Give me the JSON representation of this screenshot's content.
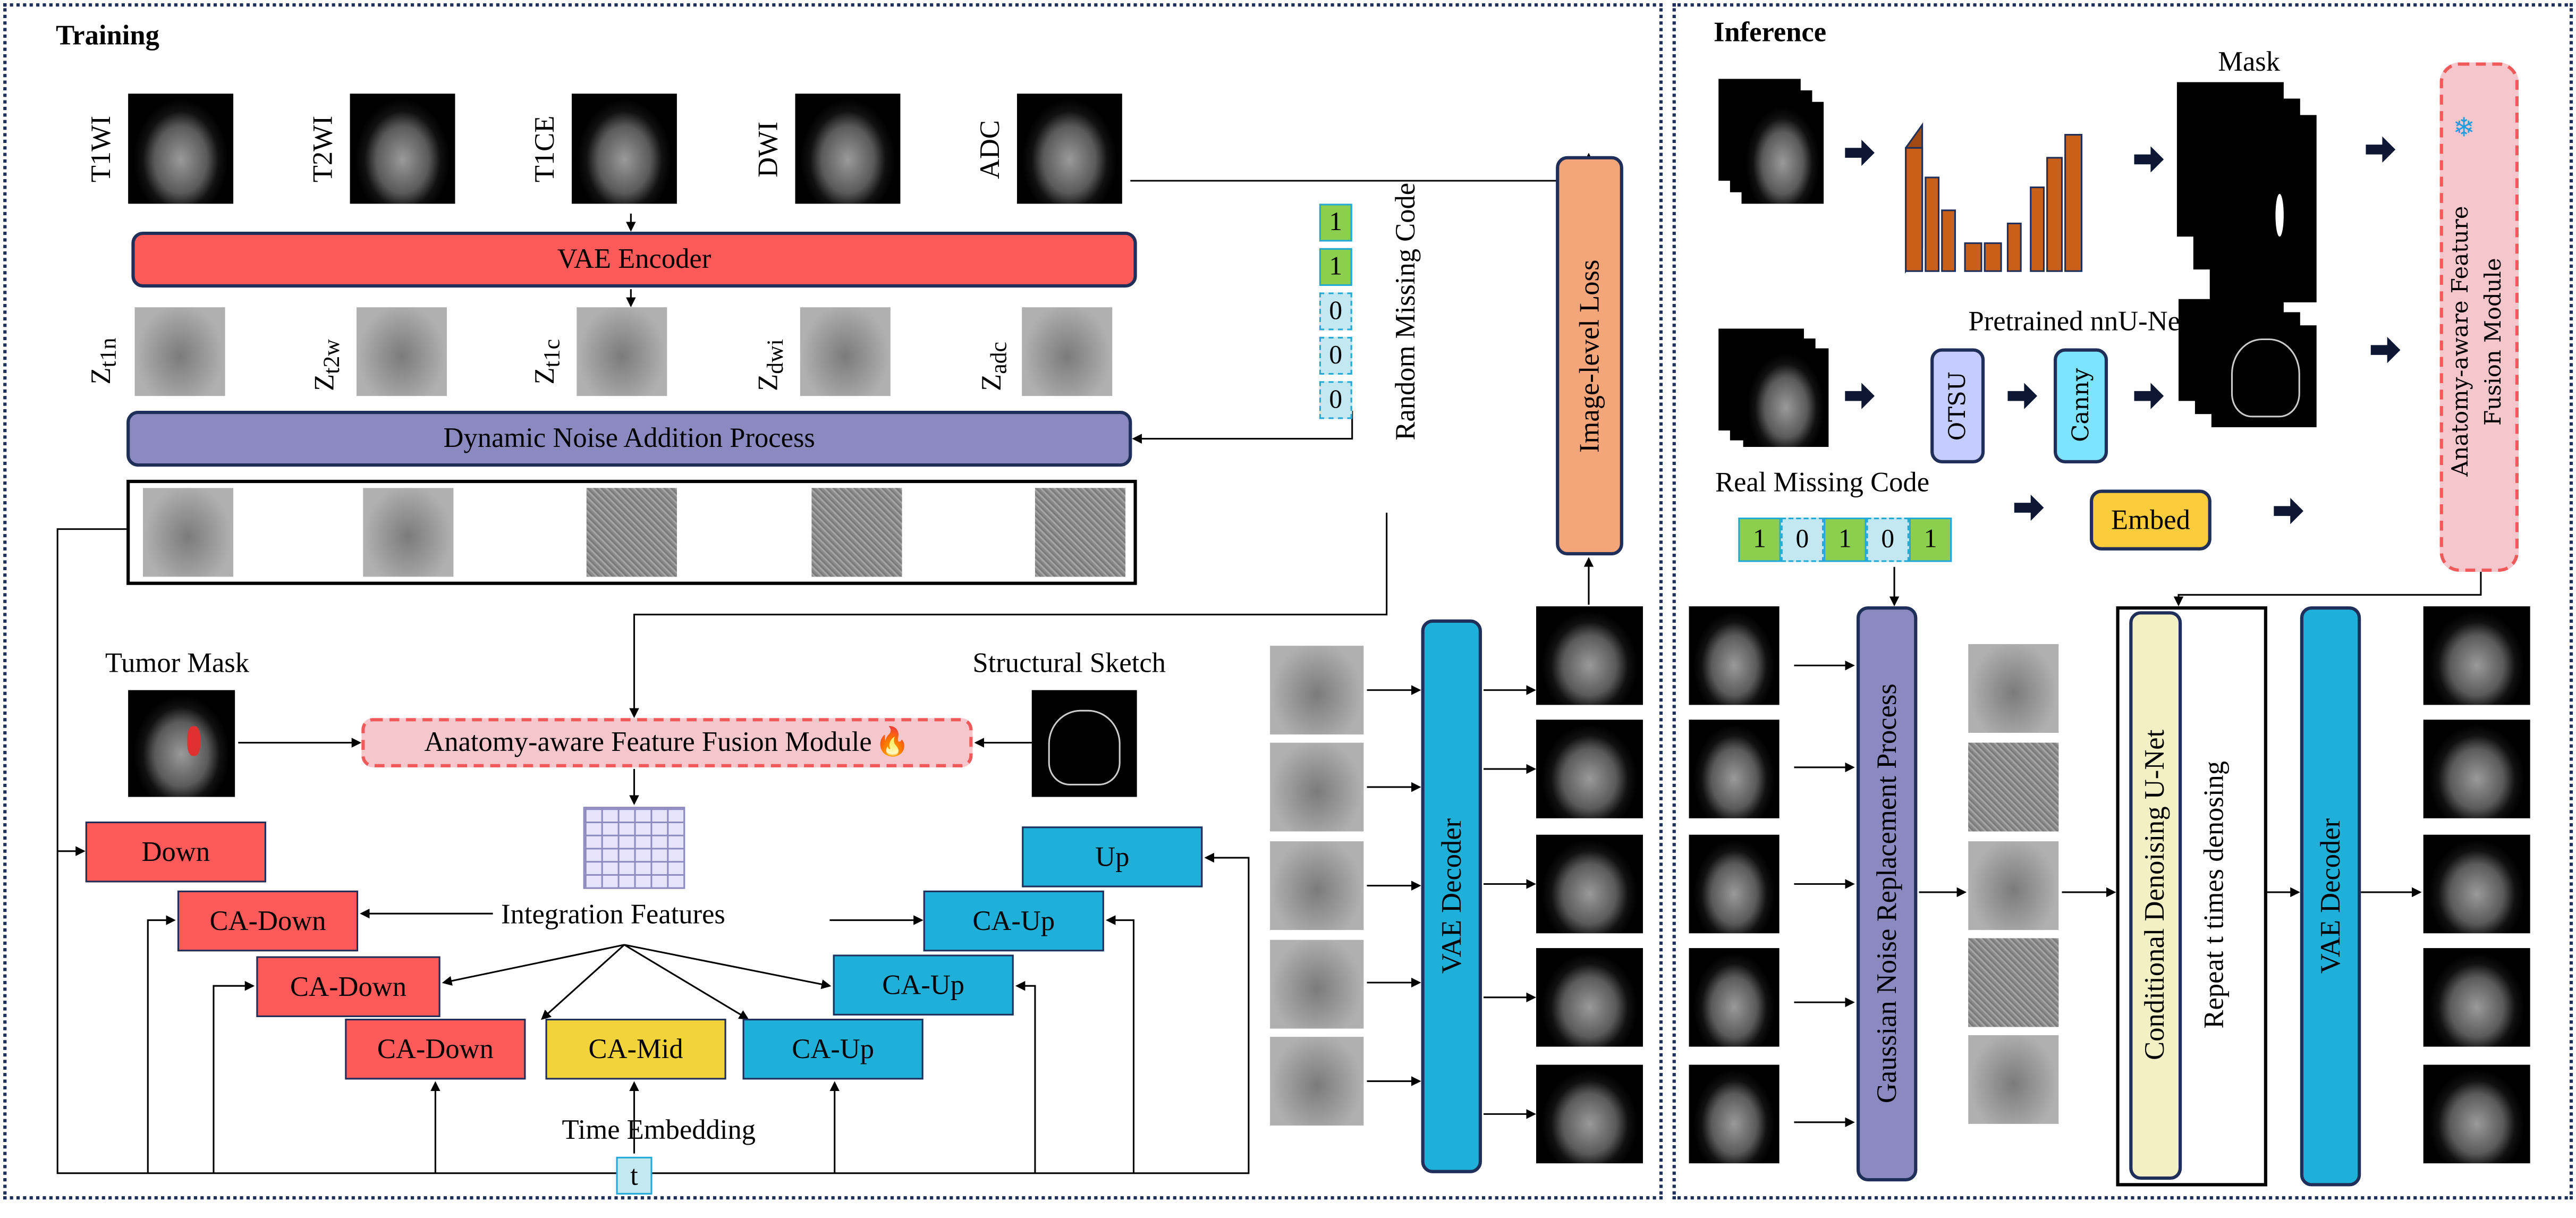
{
  "training": {
    "title": "Training",
    "modalities": [
      "T1WI",
      "T2WI",
      "T1CE",
      "DWI",
      "ADC"
    ],
    "vae_encoder": "VAE Encoder",
    "latents": [
      {
        "base": "Z",
        "sub": "t1n"
      },
      {
        "base": "Z",
        "sub": "t2w"
      },
      {
        "base": "Z",
        "sub": "t1c"
      },
      {
        "base": "Z",
        "sub": "dwi"
      },
      {
        "base": "Z",
        "sub": "adc"
      }
    ],
    "dynamic_noise": "Dynamic Noise Addition Process",
    "random_missing_code_label": "Random Missing Code",
    "random_missing_code": [
      "1",
      "1",
      "0",
      "0",
      "0"
    ],
    "image_level_loss": "Image-level Loss",
    "tumor_mask": "Tumor Mask",
    "structural_sketch": "Structural Sketch",
    "fusion_module": "Anatomy-aware Feature Fusion Module",
    "fusion_icon": "fire-icon",
    "integration_features": "Integration Features",
    "blocks": {
      "down": "Down",
      "ca_down": "CA-Down",
      "ca_mid": "CA-Mid",
      "ca_up": "CA-Up",
      "up": "Up"
    },
    "time_embedding": "Time Embedding",
    "t": "t",
    "vae_decoder": "VAE Decoder"
  },
  "inference": {
    "title": "Inference",
    "mask": "Mask",
    "pretrained": "Pretrained nnU-Net",
    "frozen_icon": "snowflake-icon",
    "sketch": "Sketch",
    "otsu": "OTSU",
    "canny": "Canny",
    "real_missing_code_label": "Real Missing Code",
    "real_missing_code": [
      "1",
      "0",
      "1",
      "0",
      "1"
    ],
    "embed": "Embed",
    "fusion_module_line1": "Anatomy-aware Feature",
    "fusion_module_line2": "Fusion Module",
    "gaussian": "Gaussian Noise Replacement Process",
    "cond_unet": "Conditional Denoising U-Net",
    "repeat": "Repeat t times denosing",
    "vae_decoder": "VAE Decoder"
  },
  "colors": {
    "encoder": "#ff5a5a",
    "noise_process": "#8b8ac0",
    "loss": "#f4a67a",
    "fusion": "#f5c6cc",
    "fusion_border": "#f05a5a",
    "decoder": "#1eb0d8",
    "mid": "#f2d43a",
    "otsu": "#c5ccff",
    "canny": "#7ee3ff",
    "embed": "#fbcc3c",
    "code_present": "#8ccf4f",
    "code_missing": "#c4e8f1"
  }
}
